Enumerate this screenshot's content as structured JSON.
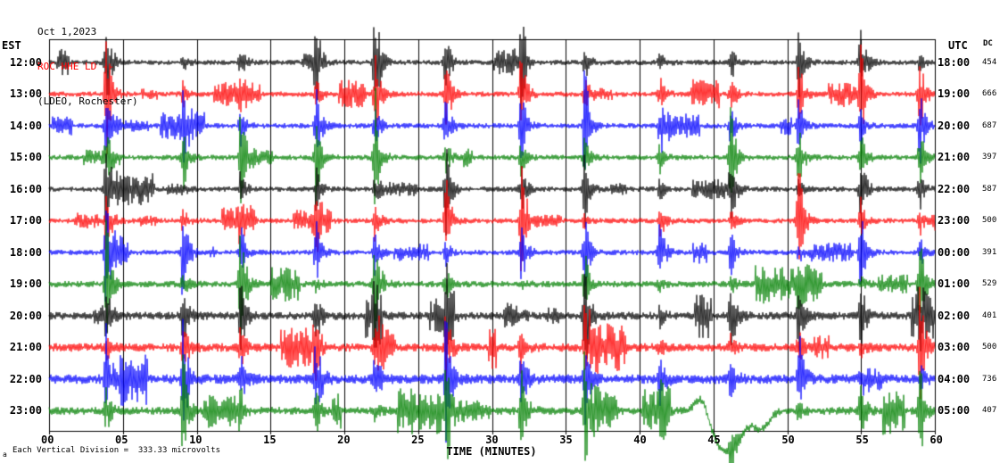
{
  "header": {
    "date": "Oct 1,2023",
    "station": "ROC HHE LD --",
    "location": "(LDEO, Rochester)"
  },
  "axes": {
    "left_timezone": "EST",
    "right_timezone": "UTC",
    "dc_column": "DC",
    "x_label": "TIME (MINUTES)",
    "x_ticks": [
      "00",
      "05",
      "10",
      "15",
      "20",
      "25",
      "30",
      "35",
      "40",
      "45",
      "50",
      "55",
      "60"
    ]
  },
  "footer": {
    "marker": "a",
    "scale_note": "Each Vertical Division =  333.33 microvolts"
  },
  "colors": {
    "trace_black": "#000000",
    "trace_red": "#ff0000",
    "trace_blue": "#0000ff",
    "trace_green": "#008000",
    "station_label": "#ff0000",
    "grid": "#000000"
  },
  "chart_data": {
    "type": "line",
    "subtype": "helicorder_seismogram",
    "title": "ROC HHE LD (LDEO, Rochester) Oct 1,2023",
    "x_range_minutes": [
      0,
      60
    ],
    "grid_interval_minutes": 5,
    "vertical_division_microvolts": 333.33,
    "rows": [
      {
        "est": "12:00",
        "utc": "18:00",
        "dc": "454",
        "color": "#000000"
      },
      {
        "est": "13:00",
        "utc": "19:00",
        "dc": "666",
        "color": "#ff0000"
      },
      {
        "est": "14:00",
        "utc": "20:00",
        "dc": "687",
        "color": "#0000ff"
      },
      {
        "est": "15:00",
        "utc": "21:00",
        "dc": "397",
        "color": "#008000"
      },
      {
        "est": "16:00",
        "utc": "22:00",
        "dc": "587",
        "color": "#000000"
      },
      {
        "est": "17:00",
        "utc": "23:00",
        "dc": "500",
        "color": "#ff0000"
      },
      {
        "est": "18:00",
        "utc": "00:00",
        "dc": "391",
        "color": "#0000ff"
      },
      {
        "est": "19:00",
        "utc": "01:00",
        "dc": "529",
        "color": "#008000"
      },
      {
        "est": "20:00",
        "utc": "02:00",
        "dc": "401",
        "color": "#000000"
      },
      {
        "est": "21:00",
        "utc": "03:00",
        "dc": "500",
        "color": "#ff0000"
      },
      {
        "est": "22:00",
        "utc": "04:00",
        "dc": "736",
        "color": "#0000ff"
      },
      {
        "est": "23:00",
        "utc": "05:00",
        "dc": "407",
        "color": "#008000"
      }
    ],
    "event_spike_minutes": [
      3.9,
      9.1,
      13.0,
      18.1,
      22.1,
      26.9,
      32.0,
      36.3,
      41.4,
      46.2,
      50.8,
      55.0,
      59.0
    ],
    "row_activity": [
      1,
      1,
      1,
      1,
      1,
      1,
      1,
      1.2,
      1.5,
      1.6,
      1.8,
      1.5
    ],
    "highlight_spikes": [
      {
        "row": 0,
        "event_index": 4,
        "amp": 85
      },
      {
        "row": 0,
        "event_index": 0,
        "amp": 62
      },
      {
        "row": 1,
        "event_index": 0,
        "amp": 72
      },
      {
        "row": 2,
        "event_index": 0,
        "amp": 66
      },
      {
        "row": 3,
        "event_index": 9,
        "amp": 60
      }
    ],
    "wanders": [
      {
        "row": 11,
        "m": 44.2,
        "w": 0.6,
        "amp": -22
      },
      {
        "row": 11,
        "m": 45.9,
        "w": 1.4,
        "amp": 46
      },
      {
        "row": 11,
        "m": 48.3,
        "w": 0.7,
        "amp": 18
      }
    ]
  }
}
